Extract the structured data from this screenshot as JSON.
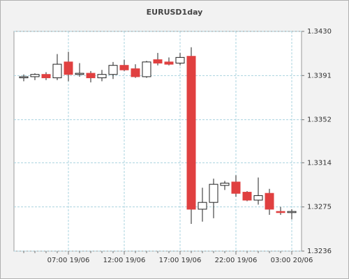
{
  "chart_data": {
    "type": "candlestick",
    "title": "EURUSD1day",
    "categories": [
      null,
      null,
      null,
      null,
      "07:00 19/06",
      null,
      null,
      null,
      null,
      "12:00 19/06",
      null,
      null,
      null,
      null,
      "17:00 19/06",
      null,
      null,
      null,
      null,
      "22:00 19/06",
      null,
      null,
      null,
      null,
      "03:00 20/06"
    ],
    "open": [
      1.3389,
      1.339,
      1.3392,
      1.3389,
      1.3403,
      1.3392,
      1.3393,
      1.3389,
      1.3392,
      1.34,
      1.3397,
      1.339,
      1.3405,
      1.3403,
      1.3402,
      1.3408,
      1.3273,
      1.3279,
      1.3294,
      1.3297,
      1.3288,
      1.3281,
      1.3287,
      1.3271,
      1.327
    ],
    "high": [
      1.3392,
      1.3393,
      1.3394,
      1.341,
      1.3412,
      1.3402,
      1.3395,
      1.3396,
      1.3403,
      1.3405,
      1.3401,
      1.3404,
      1.3411,
      1.3407,
      1.3411,
      1.3416,
      1.3292,
      1.33,
      1.3298,
      1.3303,
      1.3289,
      1.3301,
      1.3291,
      1.3275,
      1.3273
    ],
    "low": [
      1.3386,
      1.3387,
      1.3387,
      1.3387,
      1.3386,
      1.339,
      1.3385,
      1.3386,
      1.3388,
      1.3395,
      1.3389,
      1.3389,
      1.34,
      1.34,
      1.34,
      1.326,
      1.3262,
      1.3265,
      1.329,
      1.3284,
      1.328,
      1.3277,
      1.3268,
      1.3268,
      1.3264
    ],
    "close": [
      1.339,
      1.3392,
      1.3389,
      1.3401,
      1.3392,
      1.3393,
      1.3389,
      1.3392,
      1.34,
      1.3396,
      1.339,
      1.3403,
      1.3402,
      1.3401,
      1.3407,
      1.3273,
      1.3279,
      1.3295,
      1.3296,
      1.3287,
      1.3281,
      1.3285,
      1.3273,
      1.327,
      1.3271
    ],
    "up_color": "#ffffff",
    "down_color": "#e04040",
    "ylim": [
      1.3236,
      1.343
    ],
    "yticks": [
      1.3236,
      1.3275,
      1.3314,
      1.3352,
      1.3391,
      {
        "value": 1.343,
        "label": "1.3430"
      }
    ],
    "grid": true
  }
}
